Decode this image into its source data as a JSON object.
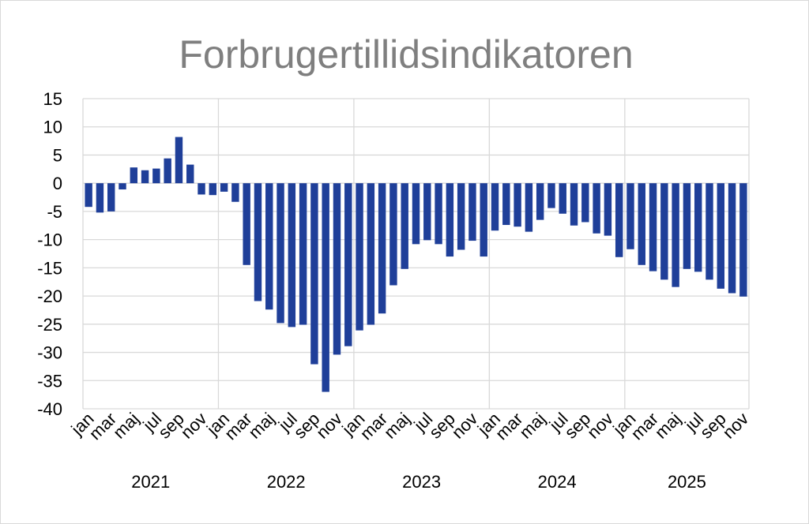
{
  "colors": {
    "bar": "#1f3f99",
    "grid": "#d9d9d9",
    "title": "#7f7f7f",
    "text": "#000000"
  },
  "chart_data": {
    "type": "bar",
    "title": "Forbrugertillidsindikatoren",
    "xlabel": "",
    "ylabel": "",
    "ylim": [
      -40,
      15
    ],
    "yticks": [
      15,
      10,
      5,
      0,
      -5,
      -10,
      -15,
      -20,
      -25,
      -30,
      -35,
      -40
    ],
    "grid": true,
    "legend": "none",
    "month_labels": [
      "jan",
      "mar",
      "maj",
      "jul",
      "sep",
      "nov"
    ],
    "years": [
      "2021",
      "2022",
      "2023",
      "2024",
      "2025"
    ],
    "categories": [
      "jan 2021",
      "feb 2021",
      "mar 2021",
      "apr 2021",
      "maj 2021",
      "jun 2021",
      "jul 2021",
      "aug 2021",
      "sep 2021",
      "okt 2021",
      "nov 2021",
      "dec 2021",
      "jan 2022",
      "feb 2022",
      "mar 2022",
      "apr 2022",
      "maj 2022",
      "jun 2022",
      "jul 2022",
      "aug 2022",
      "sep 2022",
      "okt 2022",
      "nov 2022",
      "dec 2022",
      "jan 2023",
      "feb 2023",
      "mar 2023",
      "apr 2023",
      "maj 2023",
      "jun 2023",
      "jul 2023",
      "aug 2023",
      "sep 2023",
      "okt 2023",
      "nov 2023",
      "dec 2023",
      "jan 2024",
      "feb 2024",
      "mar 2024",
      "apr 2024",
      "maj 2024",
      "jun 2024",
      "jul 2024",
      "aug 2024",
      "sep 2024",
      "okt 2024",
      "nov 2024",
      "dec 2024",
      "jan 2025",
      "feb 2025",
      "mar 2025",
      "apr 2025",
      "maj 2025",
      "jun 2025",
      "jul 2025",
      "aug 2025",
      "sep 2025",
      "okt 2025",
      "nov 2025"
    ],
    "values": [
      -4.2,
      -5.2,
      -5.0,
      -1.1,
      2.8,
      2.3,
      2.6,
      4.4,
      8.2,
      3.3,
      -2.0,
      -2.1,
      -1.5,
      -3.3,
      -14.5,
      -20.9,
      -22.4,
      -24.8,
      -25.5,
      -25.1,
      -32.1,
      -37.0,
      -30.4,
      -28.9,
      -26.1,
      -25.1,
      -23.1,
      -18.1,
      -15.2,
      -10.8,
      -10.1,
      -10.8,
      -13.0,
      -11.8,
      -10.2,
      -13.0,
      -8.4,
      -7.4,
      -7.7,
      -8.6,
      -6.5,
      -4.4,
      -5.4,
      -7.5,
      -6.9,
      -8.9,
      -9.3,
      -13.1,
      -11.7,
      -14.5,
      -15.6,
      -17.1,
      -18.4,
      -15.2,
      -15.7,
      -17.1,
      -18.7,
      -19.5,
      -20.1
    ]
  }
}
